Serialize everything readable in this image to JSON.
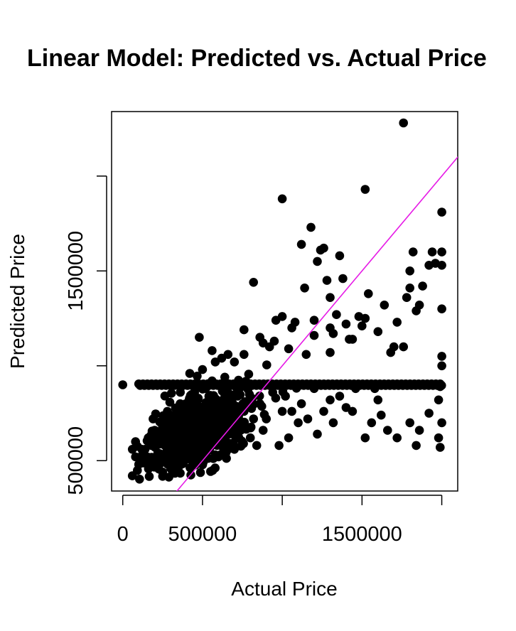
{
  "chart_data": {
    "type": "scatter",
    "title": "Linear Model: Predicted vs. Actual Price",
    "xlabel": "Actual Price",
    "ylabel": "Predicted Price",
    "xlim": [
      -70000,
      2100000
    ],
    "ylim": [
      340000,
      2340000
    ],
    "x_ticks": [
      {
        "value": 0,
        "label": "0"
      },
      {
        "value": 500000,
        "label": "500000"
      },
      {
        "value": 1000000,
        "label": ""
      },
      {
        "value": 1500000,
        "label": "1500000"
      },
      {
        "value": 2000000,
        "label": ""
      }
    ],
    "y_ticks": [
      {
        "value": 500000,
        "label": "500000"
      },
      {
        "value": 1000000,
        "label": ""
      },
      {
        "value": 1500000,
        "label": "1500000"
      },
      {
        "value": 2000000,
        "label": ""
      }
    ],
    "grid": false,
    "point_color": "#000000",
    "line_color": "#e619e6",
    "reference_line": {
      "type": "y=x",
      "from": 300000,
      "to": 2150000
    },
    "dense_band": {
      "x_from": 100000,
      "x_to": 2000000,
      "y": 900000
    },
    "cluster": {
      "center_x": 480000,
      "center_y": 660000,
      "spread_x": 160000,
      "spread_y": 90000
    },
    "points": [
      [
        0,
        900000
      ],
      [
        60000,
        420000
      ],
      [
        60000,
        560000
      ],
      [
        80000,
        520000
      ],
      [
        80000,
        600000
      ],
      [
        100000,
        480000
      ],
      [
        120000,
        560000
      ],
      [
        150000,
        520000
      ],
      [
        180000,
        480000
      ],
      [
        200000,
        600000
      ],
      [
        250000,
        440000
      ],
      [
        260000,
        520000
      ],
      [
        300000,
        460000
      ],
      [
        420000,
        960000
      ],
      [
        440000,
        680000
      ],
      [
        480000,
        1150000
      ],
      [
        500000,
        980000
      ],
      [
        520000,
        880000
      ],
      [
        560000,
        1080000
      ],
      [
        580000,
        1020000
      ],
      [
        620000,
        1040000
      ],
      [
        660000,
        1060000
      ],
      [
        700000,
        1020000
      ],
      [
        760000,
        1060000
      ],
      [
        760000,
        1190000
      ],
      [
        820000,
        1440000
      ],
      [
        860000,
        1150000
      ],
      [
        880000,
        1120000
      ],
      [
        920000,
        1100000
      ],
      [
        950000,
        1130000
      ],
      [
        960000,
        1240000
      ],
      [
        1000000,
        1880000
      ],
      [
        1000000,
        1260000
      ],
      [
        1040000,
        1090000
      ],
      [
        1060000,
        1200000
      ],
      [
        1080000,
        1230000
      ],
      [
        1120000,
        1640000
      ],
      [
        1140000,
        1410000
      ],
      [
        1150000,
        1060000
      ],
      [
        1180000,
        1730000
      ],
      [
        1200000,
        1240000
      ],
      [
        1200000,
        1160000
      ],
      [
        1220000,
        1550000
      ],
      [
        1240000,
        1610000
      ],
      [
        1260000,
        1620000
      ],
      [
        1280000,
        1450000
      ],
      [
        1300000,
        1200000
      ],
      [
        1300000,
        1360000
      ],
      [
        1300000,
        1070000
      ],
      [
        1320000,
        1170000
      ],
      [
        1340000,
        1270000
      ],
      [
        1360000,
        1580000
      ],
      [
        1380000,
        1460000
      ],
      [
        1400000,
        1220000
      ],
      [
        1420000,
        1140000
      ],
      [
        1440000,
        1140000
      ],
      [
        1480000,
        1260000
      ],
      [
        1500000,
        1210000
      ],
      [
        1520000,
        1930000
      ],
      [
        1520000,
        1250000
      ],
      [
        1540000,
        1380000
      ],
      [
        1600000,
        1180000
      ],
      [
        1640000,
        1320000
      ],
      [
        1680000,
        1070000
      ],
      [
        1700000,
        1100000
      ],
      [
        1720000,
        1230000
      ],
      [
        1760000,
        1100000
      ],
      [
        1780000,
        1360000
      ],
      [
        1800000,
        1500000
      ],
      [
        1800000,
        1410000
      ],
      [
        1820000,
        1600000
      ],
      [
        1840000,
        1290000
      ],
      [
        1860000,
        1320000
      ],
      [
        1880000,
        1420000
      ],
      [
        1920000,
        1530000
      ],
      [
        1940000,
        1600000
      ],
      [
        1960000,
        1540000
      ],
      [
        2000000,
        1600000
      ],
      [
        2000000,
        1300000
      ],
      [
        2000000,
        1050000
      ],
      [
        1760000,
        2280000
      ],
      [
        2000000,
        1810000
      ],
      [
        2000000,
        1530000
      ],
      [
        2000000,
        1000000
      ],
      [
        1990000,
        890000
      ],
      [
        1980000,
        820000
      ],
      [
        1980000,
        620000
      ],
      [
        1990000,
        570000
      ],
      [
        2000000,
        700000
      ],
      [
        1920000,
        750000
      ],
      [
        1880000,
        900000
      ],
      [
        1860000,
        660000
      ],
      [
        1840000,
        580000
      ],
      [
        1800000,
        700000
      ],
      [
        1720000,
        620000
      ],
      [
        1660000,
        660000
      ],
      [
        1620000,
        740000
      ],
      [
        1600000,
        820000
      ],
      [
        1580000,
        880000
      ],
      [
        1560000,
        700000
      ],
      [
        1520000,
        620000
      ],
      [
        1460000,
        880000
      ],
      [
        1440000,
        760000
      ],
      [
        1400000,
        780000
      ],
      [
        1360000,
        840000
      ],
      [
        1320000,
        700000
      ],
      [
        1300000,
        820000
      ],
      [
        1260000,
        760000
      ],
      [
        1220000,
        640000
      ],
      [
        1200000,
        880000
      ],
      [
        1160000,
        720000
      ],
      [
        1120000,
        800000
      ],
      [
        1100000,
        700000
      ],
      [
        1080000,
        900000
      ],
      [
        1060000,
        760000
      ],
      [
        1040000,
        620000
      ],
      [
        1020000,
        840000
      ],
      [
        1000000,
        760000
      ],
      [
        980000,
        580000
      ],
      [
        940000,
        860000
      ],
      [
        900000,
        720000
      ],
      [
        880000,
        660000
      ],
      [
        860000,
        800000
      ],
      [
        840000,
        580000
      ],
      [
        820000,
        720000
      ],
      [
        800000,
        620000
      ],
      [
        780000,
        900000
      ],
      [
        760000,
        760000
      ],
      [
        740000,
        660000
      ],
      [
        720000,
        840000
      ],
      [
        700000,
        560000
      ],
      [
        680000,
        720000
      ],
      [
        640000,
        600000
      ],
      [
        620000,
        700000
      ],
      [
        600000,
        520000
      ],
      [
        580000,
        760000
      ],
      [
        560000,
        640000
      ],
      [
        540000,
        560000
      ],
      [
        520000,
        760000
      ],
      [
        480000,
        600000
      ],
      [
        460000,
        520000
      ],
      [
        440000,
        740000
      ],
      [
        420000,
        560000
      ],
      [
        400000,
        680000
      ],
      [
        380000,
        520000
      ],
      [
        360000,
        800000
      ],
      [
        340000,
        600000
      ],
      [
        320000,
        680000
      ],
      [
        300000,
        560000
      ],
      [
        280000,
        760000
      ],
      [
        260000,
        620000
      ],
      [
        240000,
        700000
      ],
      [
        220000,
        540000
      ],
      [
        200000,
        660000
      ],
      [
        180000,
        580000
      ],
      [
        160000,
        620000
      ],
      [
        140000,
        560000
      ],
      [
        120000,
        500000
      ],
      [
        660000,
        860000
      ],
      [
        640000,
        940000
      ],
      [
        600000,
        900000
      ],
      [
        560000,
        920000
      ],
      [
        540000,
        840000
      ],
      [
        500000,
        880000
      ],
      [
        470000,
        820000
      ],
      [
        450000,
        860000
      ],
      [
        420000,
        800000
      ],
      [
        400000,
        760000
      ],
      [
        380000,
        720000
      ],
      [
        350000,
        700000
      ],
      [
        330000,
        740000
      ],
      [
        310000,
        640000
      ],
      [
        290000,
        700000
      ],
      [
        270000,
        680000
      ]
    ]
  }
}
